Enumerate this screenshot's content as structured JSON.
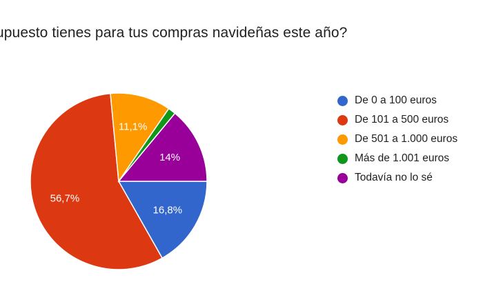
{
  "chart_data": {
    "type": "pie",
    "title": "¿Qué presupuesto tienes para tus compras navideñas este año?",
    "title_visible": "upuesto tienes para tus compras navideñas este año?",
    "categories": [
      "De 0 a 100 euros",
      "De 101 a 500 euros",
      "De 501 a 1.000 euros",
      "Más de 1.001 euros",
      "Todavía no lo sé"
    ],
    "values": [
      16.8,
      56.7,
      11.1,
      1.4,
      14
    ],
    "labels": [
      "16,8%",
      "56,7%",
      "11,1%",
      "",
      "14%"
    ],
    "colors": [
      "#3366cc",
      "#dc3912",
      "#ff9900",
      "#109618",
      "#990099"
    ],
    "start_angle_deg": 90,
    "direction": "clockwise",
    "legend_position": "right"
  }
}
